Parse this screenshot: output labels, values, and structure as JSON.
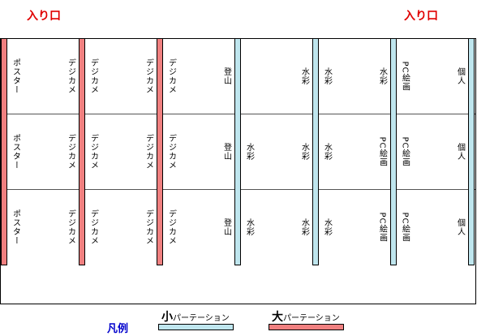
{
  "entrance_left": "入り口",
  "entrance_right": "入り口",
  "legend": {
    "title": "凡例",
    "small_big": "小",
    "small_rest": "パーテーション",
    "large_big": "大",
    "large_rest": "パーテーション",
    "colors": {
      "small": "#bfe6ee",
      "large": "#f08080"
    }
  },
  "walls": [
    {
      "type": "large",
      "left_labels": [],
      "right_labels": [
        "ポスター",
        "ポスター",
        "ポスター"
      ]
    },
    {
      "type": "large",
      "left_labels": [
        "デジカメ",
        "デジカメ",
        "デジカメ"
      ],
      "right_labels": [
        "デジカメ",
        "デジカメ",
        "デジカメ"
      ]
    },
    {
      "type": "large",
      "left_labels": [
        "デジカメ",
        "デジカメ",
        "デジカメ"
      ],
      "right_labels": [
        "デジカメ",
        "デジカメ",
        "デジカメ"
      ]
    },
    {
      "type": "small",
      "left_labels": [
        "登山",
        "登山",
        "登山"
      ],
      "right_labels": [
        "",
        "水彩",
        "水彩"
      ]
    },
    {
      "type": "small",
      "left_labels": [
        "水彩",
        "水彩",
        "水彩"
      ],
      "right_labels": [
        "水彩",
        "水彩",
        "水彩"
      ]
    },
    {
      "type": "small",
      "left_labels": [
        "水彩",
        "PC絵画",
        "PC絵画"
      ],
      "right_labels": [
        "PC絵画",
        "PC絵画",
        "PC絵画"
      ]
    },
    {
      "type": "small",
      "left_labels": [
        "個人",
        "個人",
        "個人"
      ],
      "right_labels": []
    }
  ]
}
